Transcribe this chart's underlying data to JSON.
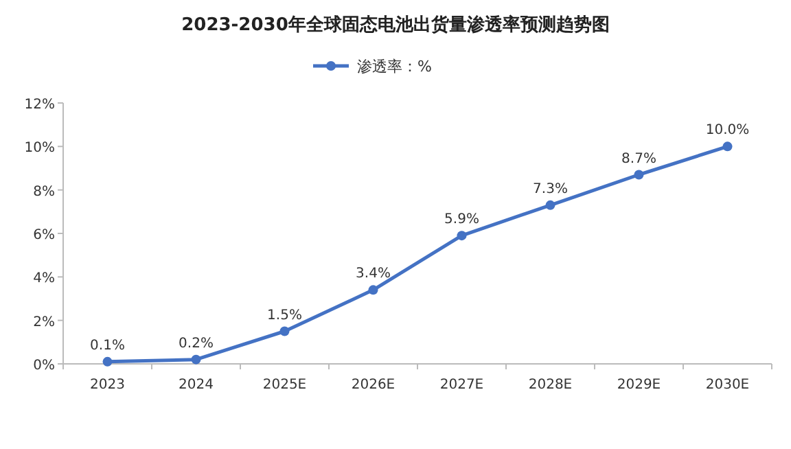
{
  "chart_data": {
    "type": "line",
    "title": "2023-2030年全球固态电池出货量渗透率预测趋势图",
    "categories": [
      "2023",
      "2024",
      "2025E",
      "2026E",
      "2027E",
      "2028E",
      "2029E",
      "2030E"
    ],
    "series": [
      {
        "name": "渗透率：%",
        "color": "#4472c4",
        "values": [
          0.1,
          0.2,
          1.5,
          3.4,
          5.9,
          7.3,
          8.7,
          10.0
        ],
        "value_labels": [
          "0.1%",
          "0.2%",
          "1.5%",
          "3.4%",
          "5.9%",
          "7.3%",
          "8.7%",
          "10.0%"
        ]
      }
    ],
    "ylim": [
      0,
      12
    ],
    "yticks": [
      {
        "value": 0,
        "label": "0%"
      },
      {
        "value": 2,
        "label": "2%"
      },
      {
        "value": 4,
        "label": "4%"
      },
      {
        "value": 6,
        "label": "6%"
      },
      {
        "value": 8,
        "label": "8%"
      },
      {
        "value": 10,
        "label": "10%"
      },
      {
        "value": 12,
        "label": "12%"
      }
    ],
    "grid": false,
    "legend": "top",
    "marker": "circle",
    "line_style": "solid"
  }
}
